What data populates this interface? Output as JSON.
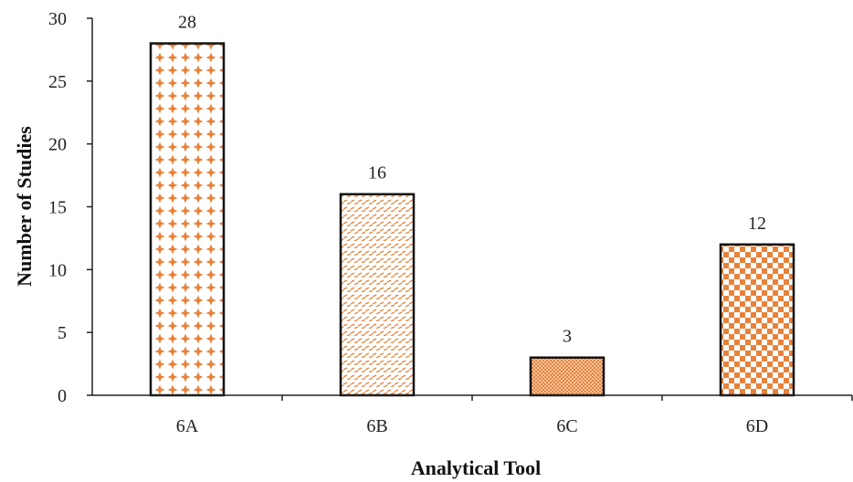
{
  "chart_data": {
    "type": "bar",
    "categories": [
      "6A",
      "6B",
      "6C",
      "6D"
    ],
    "values": [
      28,
      16,
      3,
      12
    ],
    "data_labels": [
      "28",
      "16",
      "3",
      "12"
    ],
    "xlabel": "Analytical Tool",
    "ylabel": "Number of Studies",
    "ylim": [
      0,
      30
    ],
    "yticks": [
      "0",
      "5",
      "10",
      "15",
      "20",
      "25",
      "30"
    ],
    "grid": false,
    "legend": "none",
    "bar_color": "#e8823a",
    "bar_patterns": [
      "dotted-plus",
      "diagonal-dash",
      "dense-grid",
      "checker"
    ]
  }
}
